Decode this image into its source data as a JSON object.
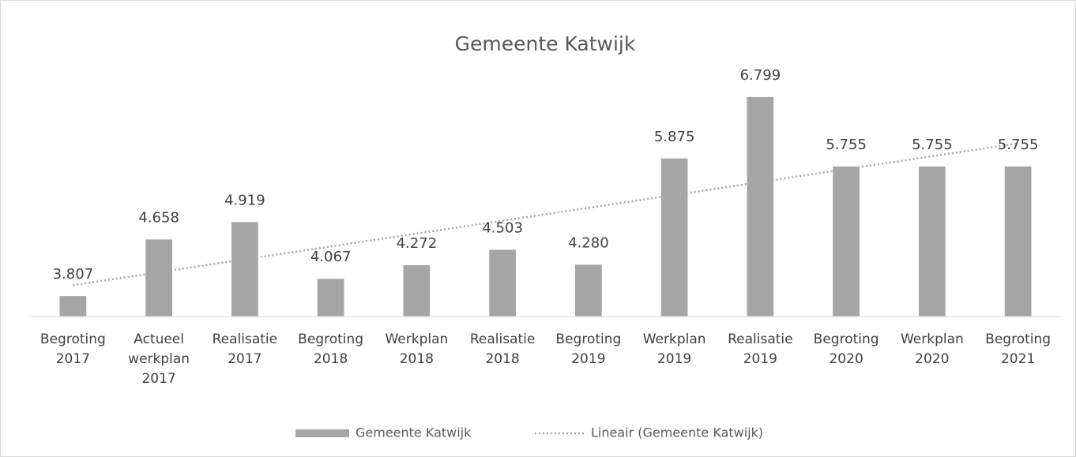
{
  "chart_data": {
    "type": "bar",
    "title": "Gemeente Katwijk",
    "categories": [
      "Begroting 2017",
      "Actueel werkplan 2017",
      "Realisatie 2017",
      "Begroting 2018",
      "Werkplan 2018",
      "Realisatie 2018",
      "Begroting 2019",
      "Werkplan 2019",
      "Realisatie 2019",
      "Begroting 2020",
      "Werkplan 2020",
      "Begroting 2021"
    ],
    "series": [
      {
        "name": "Gemeente Katwijk",
        "color": "#a5a5a5",
        "values": [
          3807,
          4658,
          4919,
          4067,
          4272,
          4503,
          4280,
          5875,
          6799,
          5755,
          5755,
          5755
        ],
        "value_labels": [
          "3.807",
          "4.658",
          "4.919",
          "4.067",
          "4.272",
          "4.503",
          "4.280",
          "5.875",
          "6.799",
          "5.755",
          "5.755",
          "5.755"
        ]
      }
    ],
    "trendline": {
      "name": "Lineair (Gemeente Katwijk)",
      "type": "linear",
      "color": "#a5a5a5"
    },
    "ylim": [
      3500,
      7000
    ],
    "legend": "bottom"
  }
}
